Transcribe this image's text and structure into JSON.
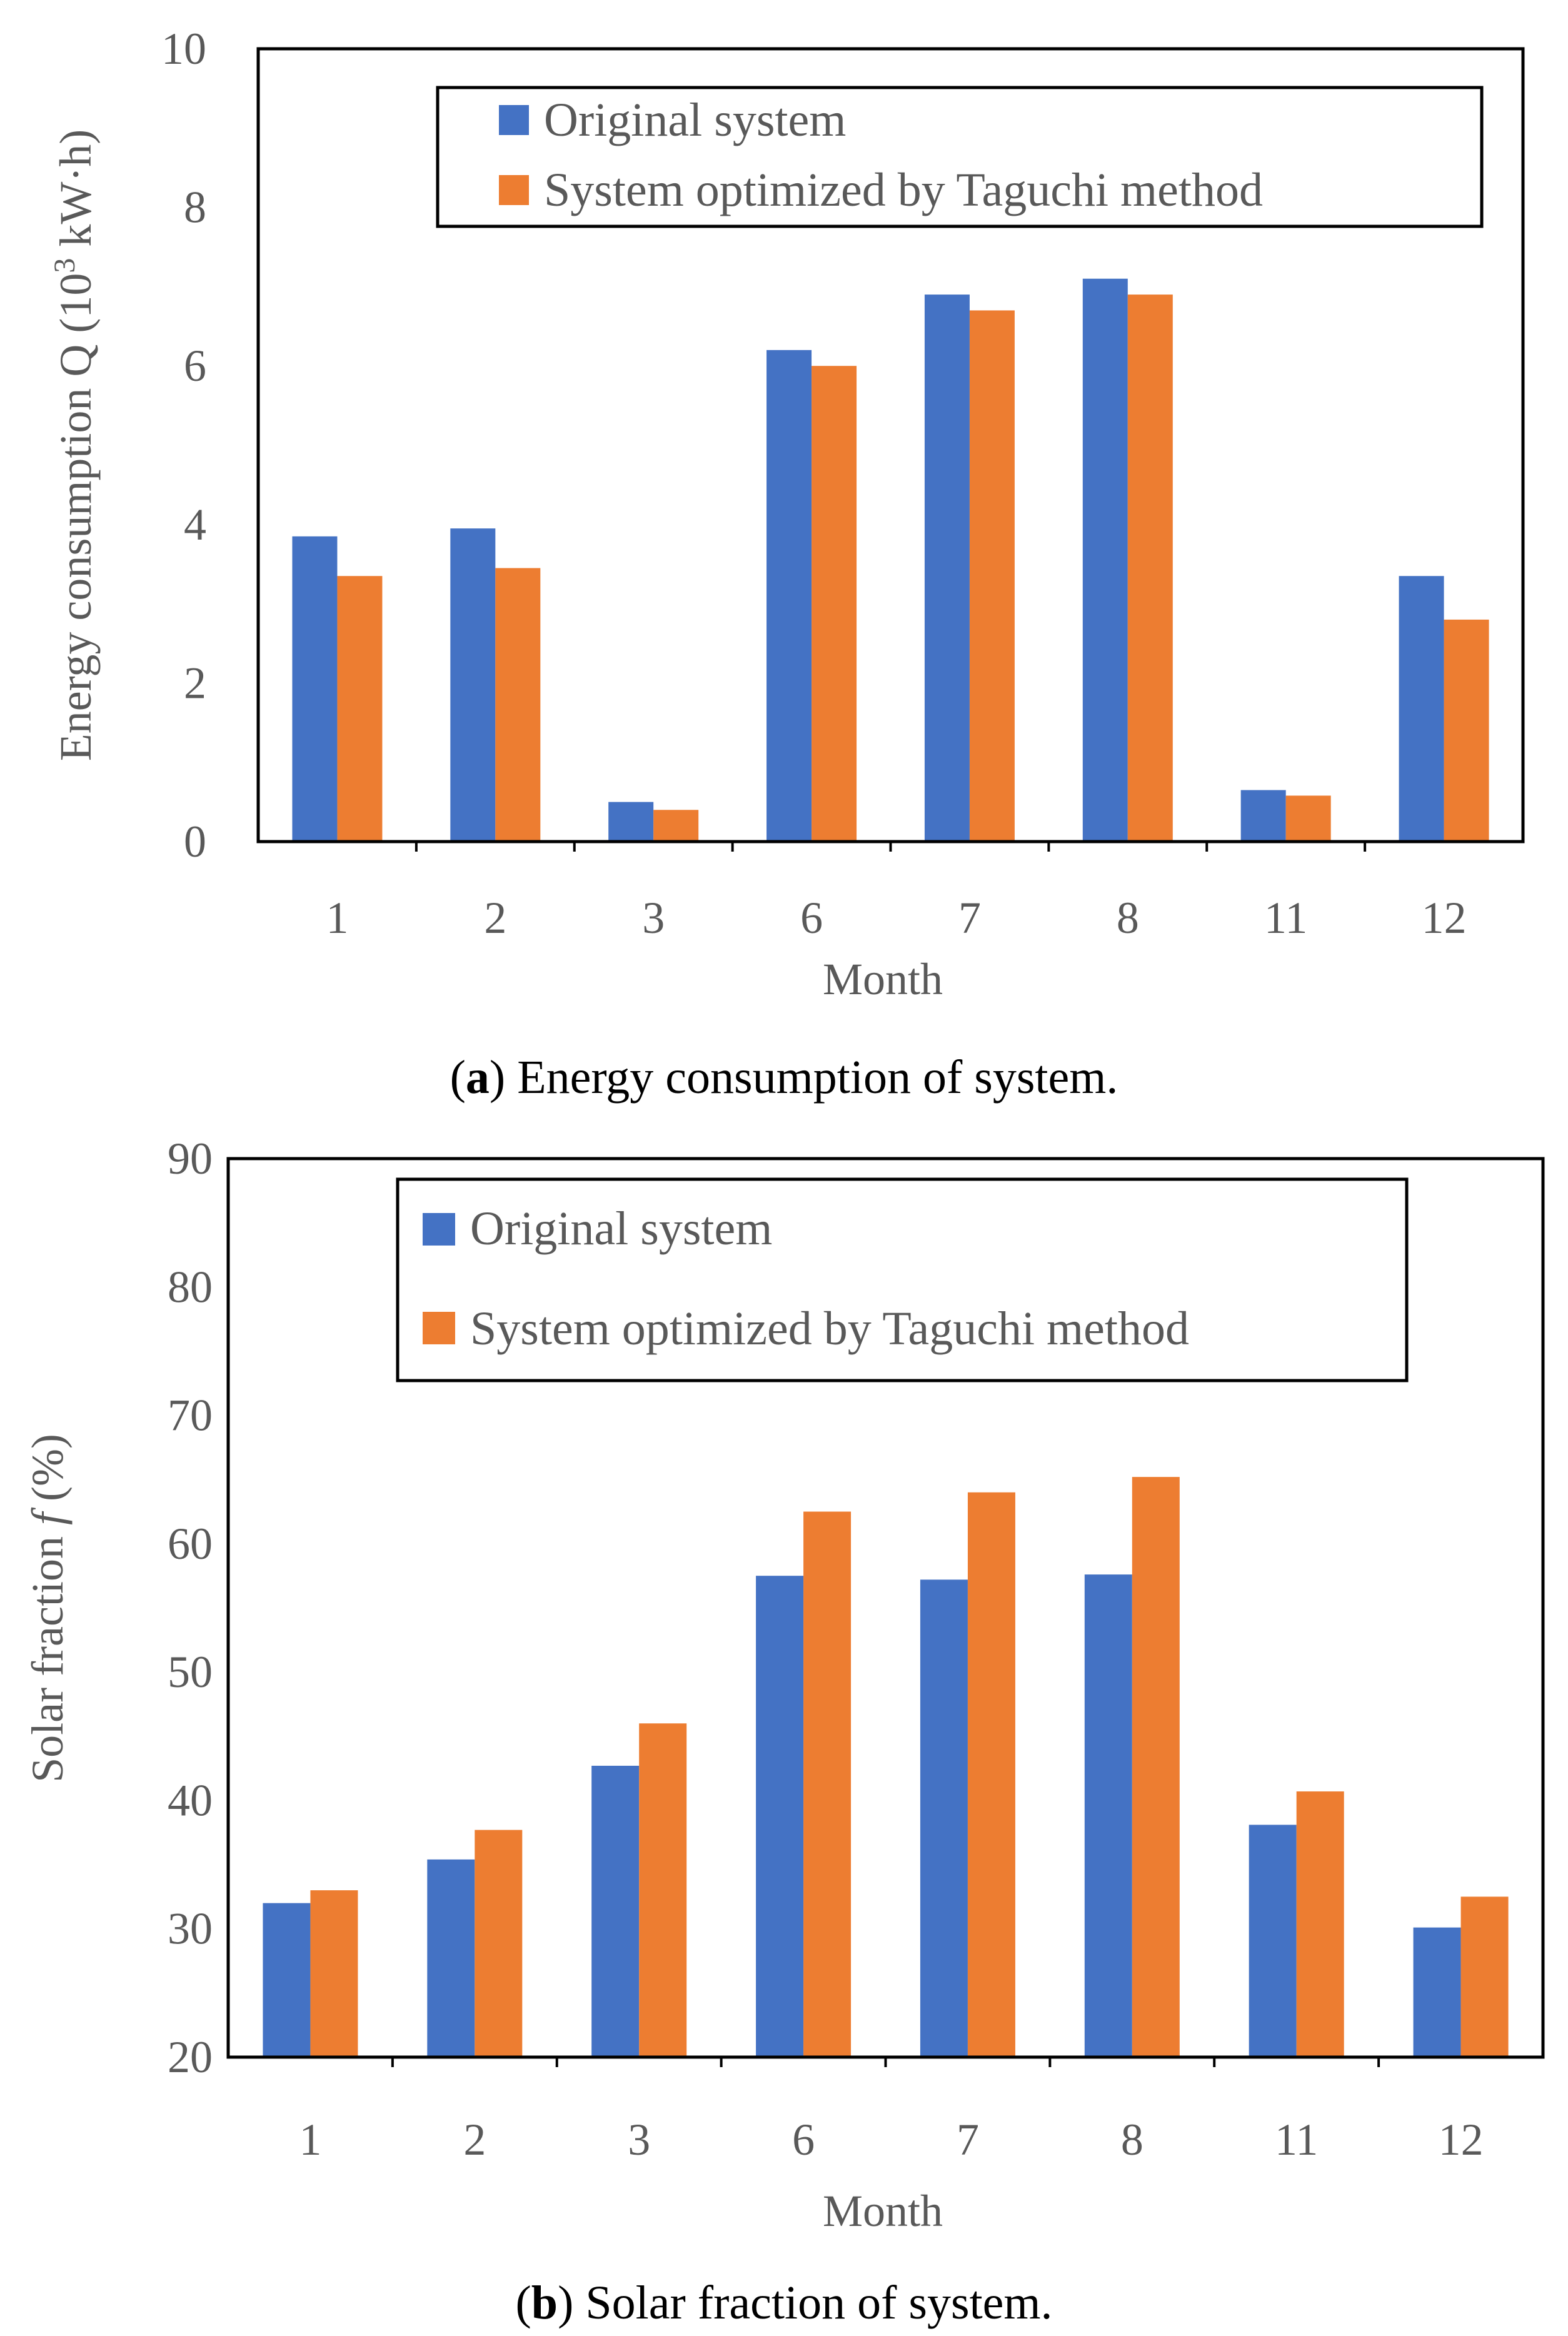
{
  "colors": {
    "original": "#4472C4",
    "optimized": "#ED7D31",
    "axis": "#000000",
    "text": "#595959"
  },
  "chart_data": [
    {
      "type": "bar",
      "title": "",
      "caption_letter": "a",
      "caption_text": ") Energy consumption of system.",
      "caption_open": "(",
      "xlabel": "Month",
      "ylabel": "Energy consumption Q (10",
      "ylabel_sup": "3",
      "ylabel_tail": " kW·h)",
      "categories": [
        "1",
        "2",
        "3",
        "6",
        "7",
        "8",
        "11",
        "12"
      ],
      "ylim": [
        0,
        10
      ],
      "yticks": [
        "0",
        "2",
        "4",
        "6",
        "8",
        "10"
      ],
      "legend": "top-right",
      "series": [
        {
          "name": "Original system",
          "values": [
            3.85,
            3.95,
            0.5,
            6.2,
            6.9,
            7.1,
            0.65,
            3.35
          ]
        },
        {
          "name": "System optimized by Taguchi method",
          "values": [
            3.35,
            3.45,
            0.4,
            6.0,
            6.7,
            6.9,
            0.58,
            2.8
          ]
        }
      ]
    },
    {
      "type": "bar",
      "title": "",
      "caption_letter": "b",
      "caption_text": ") Solar fraction of system.",
      "caption_open": "(",
      "xlabel": "Month",
      "ylabel": "Solar fraction ",
      "ylabel_italic": "f",
      "ylabel_tail": " (%)",
      "categories": [
        "1",
        "2",
        "3",
        "6",
        "7",
        "8",
        "11",
        "12"
      ],
      "ylim": [
        20,
        90
      ],
      "yticks": [
        "20",
        "30",
        "40",
        "50",
        "60",
        "70",
        "80",
        "90"
      ],
      "legend": "top-right",
      "series": [
        {
          "name": "Original system",
          "values": [
            32.0,
            35.4,
            42.7,
            57.5,
            57.2,
            57.6,
            38.1,
            30.1
          ]
        },
        {
          "name": "System optimized by Taguchi method",
          "values": [
            33.0,
            37.7,
            46.0,
            62.5,
            64.0,
            65.2,
            40.7,
            32.5
          ]
        }
      ]
    }
  ]
}
